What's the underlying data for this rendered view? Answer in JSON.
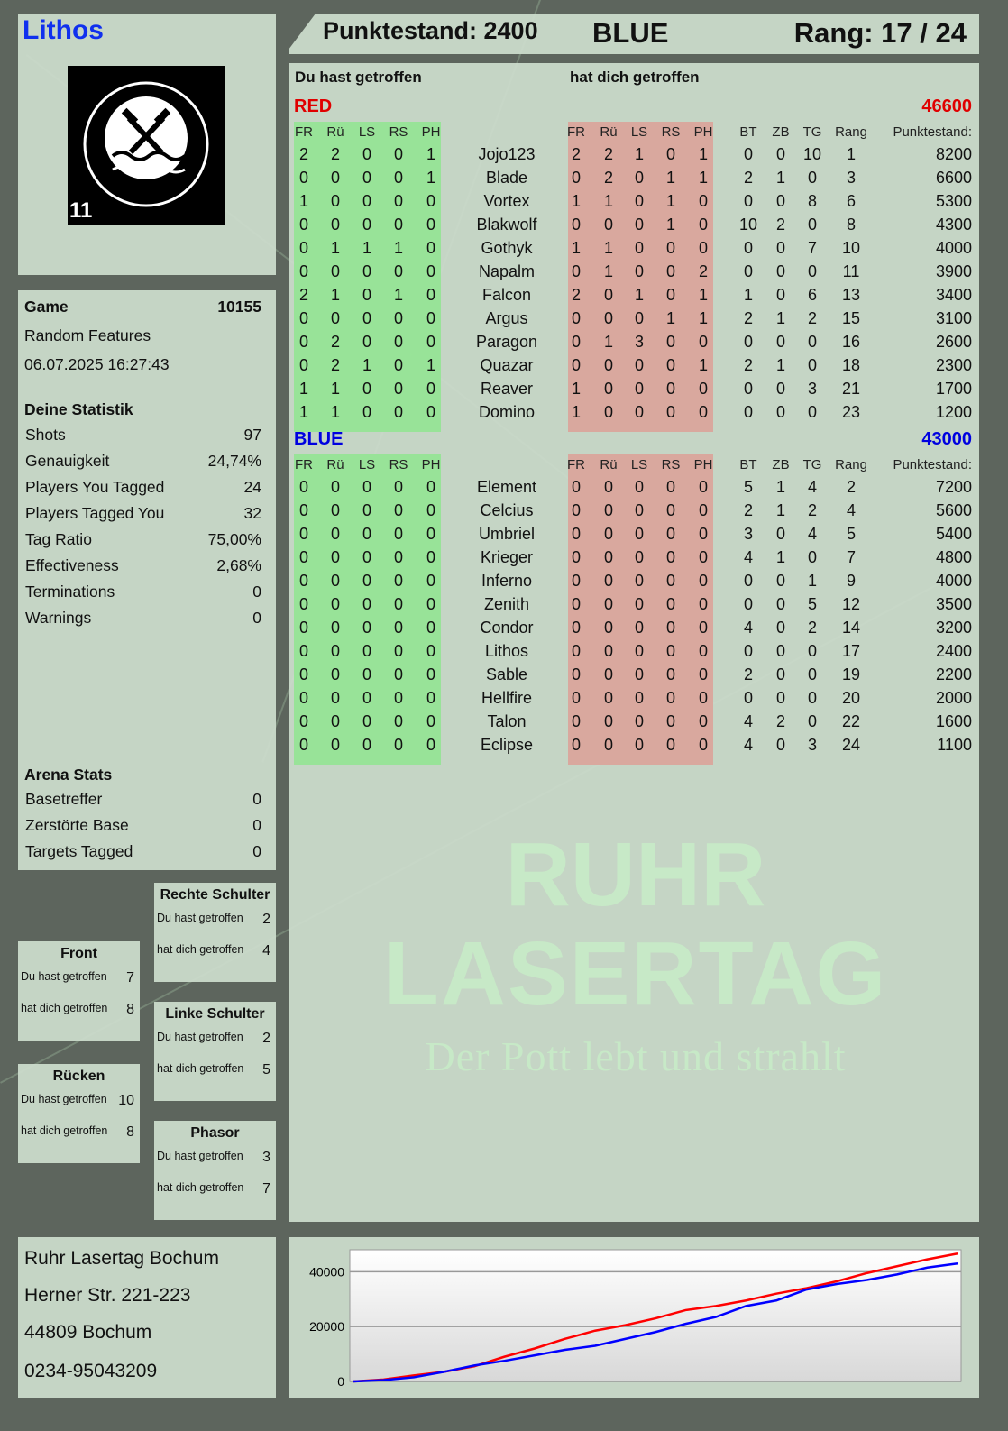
{
  "player": {
    "name": "Lithos",
    "logo_text": "RUHR LASERTAG",
    "logo_number": "11"
  },
  "header": {
    "score_label": "Punktestand: 2400",
    "team": "BLUE",
    "rank_label": "Rang: 17 / 24"
  },
  "game": {
    "label": "Game",
    "id": "10155",
    "mode": "Random Features",
    "datetime": "06.07.2025 16:27:43"
  },
  "stats": {
    "title": "Deine Statistik",
    "rows": [
      {
        "label": "Shots",
        "value": "97"
      },
      {
        "label": "Genauigkeit",
        "value": "24,74%"
      },
      {
        "label": "Players You Tagged",
        "value": "24"
      },
      {
        "label": "Players Tagged You",
        "value": "32"
      },
      {
        "label": "Tag Ratio",
        "value": "75,00%"
      },
      {
        "label": "Effectiveness",
        "value": "2,68%"
      },
      {
        "label": "Terminations",
        "value": "0"
      },
      {
        "label": "Warnings",
        "value": "0"
      }
    ]
  },
  "arena": {
    "title": "Arena Stats",
    "rows": [
      {
        "label": "Basetreffer",
        "value": "0"
      },
      {
        "label": "Zerstörte Base",
        "value": "0"
      },
      {
        "label": "Targets Tagged",
        "value": "0"
      }
    ]
  },
  "zones": [
    {
      "title": "Rechte Schulter",
      "hit_label": "Du hast getroffen",
      "hit": "2",
      "got_label": "hat dich getroffen",
      "got": "4"
    },
    {
      "title": "Front",
      "hit_label": "Du hast getroffen",
      "hit": "7",
      "got_label": "hat dich getroffen",
      "got": "8"
    },
    {
      "title": "Linke Schulter",
      "hit_label": "Du hast getroffen",
      "hit": "2",
      "got_label": "hat dich getroffen",
      "got": "5"
    },
    {
      "title": "Rücken",
      "hit_label": "Du hast getroffen",
      "hit": "10",
      "got_label": "hat dich getroffen",
      "got": "8"
    },
    {
      "title": "Phasor",
      "hit_label": "Du hast getroffen",
      "hit": "3",
      "got_label": "hat dich getroffen",
      "got": "7"
    }
  ],
  "address": {
    "line1": "Ruhr Lasertag Bochum",
    "line2": "Herner Str. 221-223",
    "line3": "44809 Bochum",
    "line4": "0234-95043209"
  },
  "table": {
    "you_hit_label": "Du hast getroffen",
    "hit_you_label": "hat dich getroffen",
    "hit_cols": [
      "FR",
      "Rü",
      "LS",
      "RS",
      "PH"
    ],
    "stat_cols": [
      "BT",
      "ZB",
      "TG",
      "Rang"
    ],
    "score_col": "Punktestand:",
    "teams": [
      {
        "name": "RED",
        "total": "46600",
        "color": "#e00000",
        "players": [
          {
            "name": "Jojo123",
            "hit": [
              2,
              2,
              0,
              0,
              1
            ],
            "got": [
              2,
              2,
              1,
              0,
              1
            ],
            "stats": [
              0,
              0,
              10,
              1
            ],
            "score": 8200
          },
          {
            "name": "Blade",
            "hit": [
              0,
              0,
              0,
              0,
              1
            ],
            "got": [
              0,
              2,
              0,
              1,
              1
            ],
            "stats": [
              2,
              1,
              0,
              3
            ],
            "score": 6600
          },
          {
            "name": "Vortex",
            "hit": [
              1,
              0,
              0,
              0,
              0
            ],
            "got": [
              1,
              1,
              0,
              1,
              0
            ],
            "stats": [
              0,
              0,
              8,
              6
            ],
            "score": 5300
          },
          {
            "name": "Blakwolf",
            "hit": [
              0,
              0,
              0,
              0,
              0
            ],
            "got": [
              0,
              0,
              0,
              1,
              0
            ],
            "stats": [
              10,
              2,
              0,
              8
            ],
            "score": 4300
          },
          {
            "name": "Gothyk",
            "hit": [
              0,
              1,
              1,
              1,
              0
            ],
            "got": [
              1,
              1,
              0,
              0,
              0
            ],
            "stats": [
              0,
              0,
              7,
              10
            ],
            "score": 4000
          },
          {
            "name": "Napalm",
            "hit": [
              0,
              0,
              0,
              0,
              0
            ],
            "got": [
              0,
              1,
              0,
              0,
              2
            ],
            "stats": [
              0,
              0,
              0,
              11
            ],
            "score": 3900
          },
          {
            "name": "Falcon",
            "hit": [
              2,
              1,
              0,
              1,
              0
            ],
            "got": [
              2,
              0,
              1,
              0,
              1
            ],
            "stats": [
              1,
              0,
              6,
              13
            ],
            "score": 3400
          },
          {
            "name": "Argus",
            "hit": [
              0,
              0,
              0,
              0,
              0
            ],
            "got": [
              0,
              0,
              0,
              1,
              1
            ],
            "stats": [
              2,
              1,
              2,
              15
            ],
            "score": 3100
          },
          {
            "name": "Paragon",
            "hit": [
              0,
              2,
              0,
              0,
              0
            ],
            "got": [
              0,
              1,
              3,
              0,
              0
            ],
            "stats": [
              0,
              0,
              0,
              16
            ],
            "score": 2600
          },
          {
            "name": "Quazar",
            "hit": [
              0,
              2,
              1,
              0,
              1
            ],
            "got": [
              0,
              0,
              0,
              0,
              1
            ],
            "stats": [
              2,
              1,
              0,
              18
            ],
            "score": 2300
          },
          {
            "name": "Reaver",
            "hit": [
              1,
              1,
              0,
              0,
              0
            ],
            "got": [
              1,
              0,
              0,
              0,
              0
            ],
            "stats": [
              0,
              0,
              3,
              21
            ],
            "score": 1700
          },
          {
            "name": "Domino",
            "hit": [
              1,
              1,
              0,
              0,
              0
            ],
            "got": [
              1,
              0,
              0,
              0,
              0
            ],
            "stats": [
              0,
              0,
              0,
              23
            ],
            "score": 1200
          }
        ]
      },
      {
        "name": "BLUE",
        "total": "43000",
        "color": "#0000e0",
        "players": [
          {
            "name": "Element",
            "hit": [
              0,
              0,
              0,
              0,
              0
            ],
            "got": [
              0,
              0,
              0,
              0,
              0
            ],
            "stats": [
              5,
              1,
              4,
              2
            ],
            "score": 7200
          },
          {
            "name": "Celcius",
            "hit": [
              0,
              0,
              0,
              0,
              0
            ],
            "got": [
              0,
              0,
              0,
              0,
              0
            ],
            "stats": [
              2,
              1,
              2,
              4
            ],
            "score": 5600
          },
          {
            "name": "Umbriel",
            "hit": [
              0,
              0,
              0,
              0,
              0
            ],
            "got": [
              0,
              0,
              0,
              0,
              0
            ],
            "stats": [
              3,
              0,
              4,
              5
            ],
            "score": 5400
          },
          {
            "name": "Krieger",
            "hit": [
              0,
              0,
              0,
              0,
              0
            ],
            "got": [
              0,
              0,
              0,
              0,
              0
            ],
            "stats": [
              4,
              1,
              0,
              7
            ],
            "score": 4800
          },
          {
            "name": "Inferno",
            "hit": [
              0,
              0,
              0,
              0,
              0
            ],
            "got": [
              0,
              0,
              0,
              0,
              0
            ],
            "stats": [
              0,
              0,
              1,
              9
            ],
            "score": 4000
          },
          {
            "name": "Zenith",
            "hit": [
              0,
              0,
              0,
              0,
              0
            ],
            "got": [
              0,
              0,
              0,
              0,
              0
            ],
            "stats": [
              0,
              0,
              5,
              12
            ],
            "score": 3500
          },
          {
            "name": "Condor",
            "hit": [
              0,
              0,
              0,
              0,
              0
            ],
            "got": [
              0,
              0,
              0,
              0,
              0
            ],
            "stats": [
              4,
              0,
              2,
              14
            ],
            "score": 3200
          },
          {
            "name": "Lithos",
            "hit": [
              0,
              0,
              0,
              0,
              0
            ],
            "got": [
              0,
              0,
              0,
              0,
              0
            ],
            "stats": [
              0,
              0,
              0,
              17
            ],
            "score": 2400
          },
          {
            "name": "Sable",
            "hit": [
              0,
              0,
              0,
              0,
              0
            ],
            "got": [
              0,
              0,
              0,
              0,
              0
            ],
            "stats": [
              2,
              0,
              0,
              19
            ],
            "score": 2200
          },
          {
            "name": "Hellfire",
            "hit": [
              0,
              0,
              0,
              0,
              0
            ],
            "got": [
              0,
              0,
              0,
              0,
              0
            ],
            "stats": [
              0,
              0,
              0,
              20
            ],
            "score": 2000
          },
          {
            "name": "Talon",
            "hit": [
              0,
              0,
              0,
              0,
              0
            ],
            "got": [
              0,
              0,
              0,
              0,
              0
            ],
            "stats": [
              4,
              2,
              0,
              22
            ],
            "score": 1600
          },
          {
            "name": "Eclipse",
            "hit": [
              0,
              0,
              0,
              0,
              0
            ],
            "got": [
              0,
              0,
              0,
              0,
              0
            ],
            "stats": [
              4,
              0,
              3,
              24
            ],
            "score": 1100
          }
        ]
      }
    ]
  },
  "watermark": {
    "line1": "RUHR",
    "line2": "LASERTAG",
    "line3": "Der Pott lebt und strahlt"
  },
  "chart_data": {
    "type": "line",
    "ylim": [
      0,
      48000
    ],
    "yticks": [
      "0",
      "20000",
      "40000"
    ],
    "grid": true,
    "x": [
      0,
      1,
      2,
      3,
      4,
      5,
      6,
      7,
      8,
      9,
      10,
      11,
      12,
      13,
      14,
      15,
      16,
      17,
      18,
      19,
      20
    ],
    "series": [
      {
        "color": "#ff0000",
        "values": [
          0,
          700,
          2200,
          3500,
          5500,
          9000,
          12000,
          15500,
          18500,
          20500,
          23000,
          26000,
          27500,
          29500,
          32000,
          34000,
          36500,
          39500,
          42000,
          44500,
          46600
        ]
      },
      {
        "color": "#0000ff",
        "values": [
          0,
          500,
          1500,
          3500,
          5800,
          7500,
          9500,
          11500,
          13000,
          15500,
          18000,
          21000,
          23500,
          27500,
          29500,
          33500,
          35500,
          37000,
          39000,
          41500,
          43000
        ]
      }
    ]
  }
}
